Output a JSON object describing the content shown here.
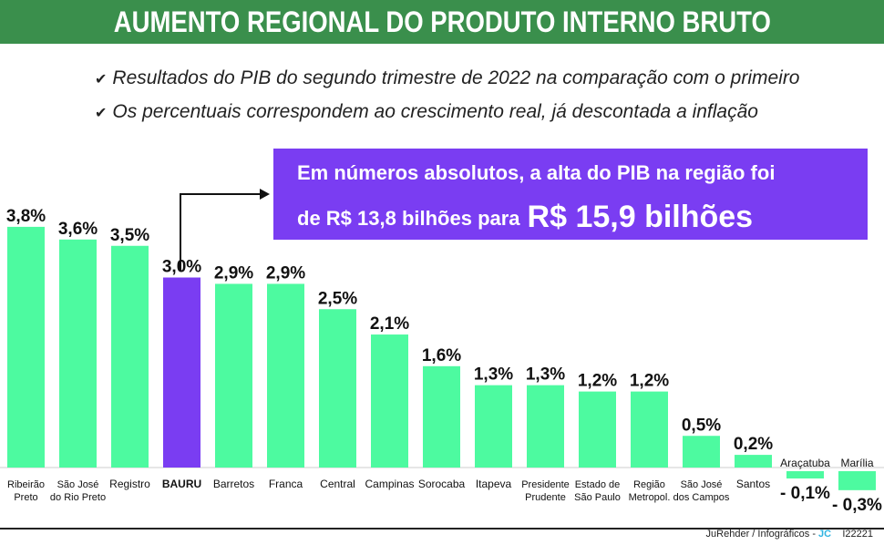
{
  "header": {
    "title": "AUMENTO REGIONAL DO PRODUTO INTERNO BRUTO"
  },
  "notes": [
    "Resultados do PIB do segundo trimestre de 2022 na comparação com o primeiro",
    "Os percentuais correspondem ao crescimento real, já descontada a inflação"
  ],
  "callout": {
    "line1": "Em números absolutos, a alta do PIB na região foi",
    "line2": "de R$ 13,8 bilhões para",
    "highlight": "R$ 15,9 bilhões"
  },
  "credit": {
    "text": "JuRehder  /  Infográficos - ",
    "brand": "JC",
    "code": "I22221"
  },
  "colors": {
    "bar": "#4dfaa0",
    "highlight_bar": "#7a3df2",
    "header": "#3a8f4c",
    "callout": "#7a3df2"
  },
  "chart_data": {
    "type": "bar",
    "categories": [
      [
        "Ribeirão",
        "Preto"
      ],
      [
        "São José",
        "do Rio Preto"
      ],
      [
        "Registro"
      ],
      [
        "BAURU"
      ],
      [
        "Barretos"
      ],
      [
        "Franca"
      ],
      [
        "Central"
      ],
      [
        "Campinas"
      ],
      [
        "Sorocaba"
      ],
      [
        "Itapeva"
      ],
      [
        "Presidente",
        "Prudente"
      ],
      [
        "Estado de",
        "São Paulo"
      ],
      [
        "Região",
        "Metropol."
      ],
      [
        "São José",
        "dos Campos"
      ],
      [
        "Santos"
      ],
      [
        "Araçatuba"
      ],
      [
        "Marília"
      ]
    ],
    "values": [
      3.8,
      3.6,
      3.5,
      3.0,
      2.9,
      2.9,
      2.5,
      2.1,
      1.6,
      1.3,
      1.3,
      1.2,
      1.2,
      0.5,
      0.2,
      -0.1,
      -0.3
    ],
    "value_labels": [
      "3,8%",
      "3,6%",
      "3,5%",
      "3,0%",
      "2,9%",
      "2,9%",
      "2,5%",
      "2,1%",
      "1,6%",
      "1,3%",
      "1,3%",
      "1,2%",
      "1,2%",
      "0,5%",
      "0,2%",
      "- 0,1%",
      "- 0,3%"
    ],
    "highlight_index": 3,
    "unit": "%"
  }
}
